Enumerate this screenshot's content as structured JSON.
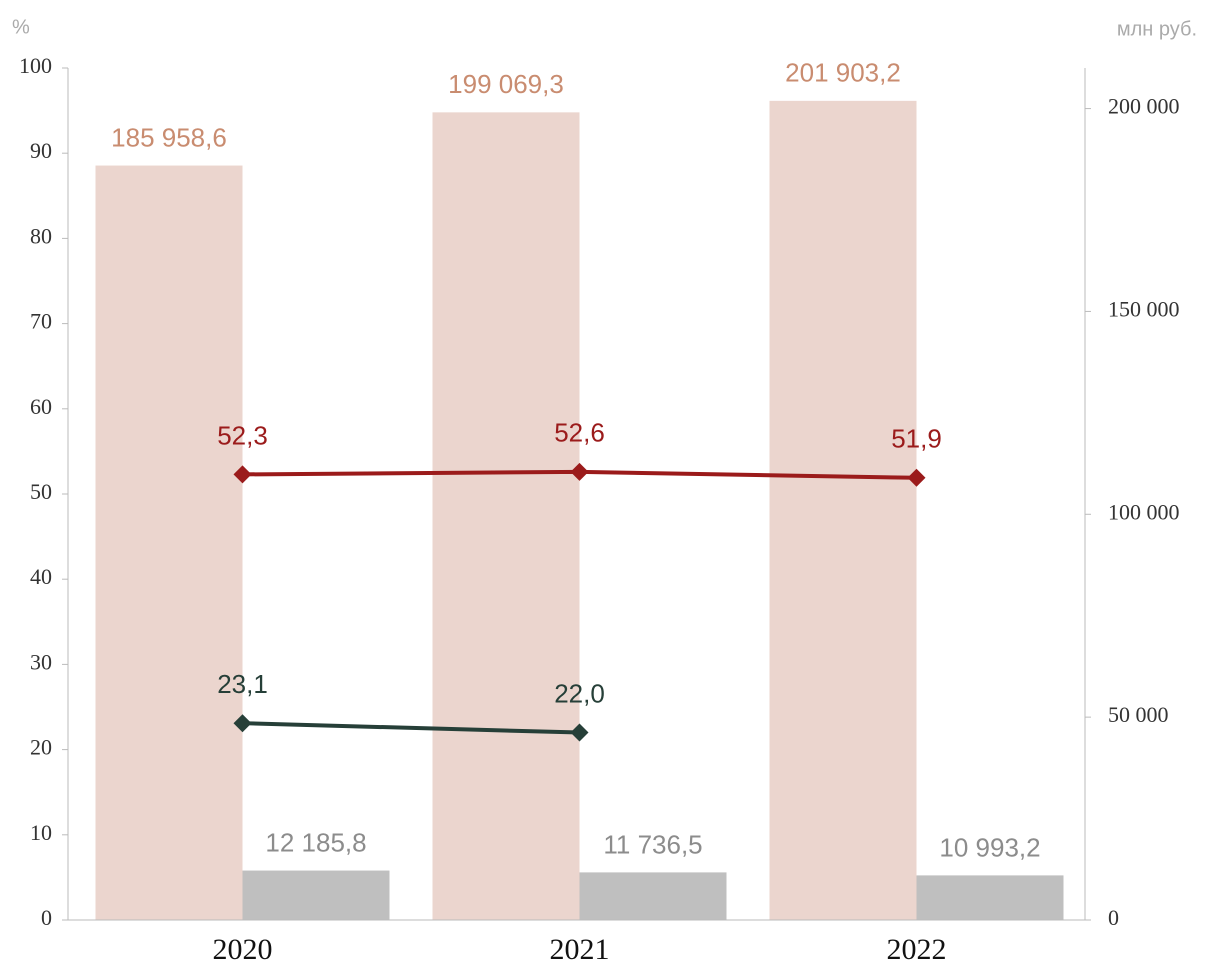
{
  "chart_data": {
    "type": "bar",
    "ylabel": "%",
    "y2label": "млн руб.",
    "categories": [
      "2020",
      "2021",
      "2022"
    ],
    "ylim": [
      0,
      100
    ],
    "yticks": [
      0,
      10,
      20,
      30,
      40,
      50,
      60,
      70,
      80,
      90,
      100
    ],
    "y2lim": [
      0,
      210000
    ],
    "y2ticks": [
      0,
      {
        "value": 50000,
        "label": "50 000"
      },
      {
        "value": 100000,
        "label": "100 000"
      },
      {
        "value": 150000,
        "label": "150 000"
      },
      {
        "value": 200000,
        "label": "200 000"
      }
    ],
    "series": [
      {
        "type": "bar",
        "axis": "y2",
        "color": "#ebd5ce",
        "label_color": "#c98c70",
        "values": [
          185958.6,
          199069.3,
          201903.2
        ],
        "value_labels": [
          "185 958,6",
          "199 069,3",
          "201 903,2"
        ]
      },
      {
        "type": "bar",
        "axis": "y2",
        "color": "#bfbfbf",
        "label_color": "#8c8c8c",
        "values": [
          12185.8,
          11736.5,
          10993.2
        ],
        "value_labels": [
          "12 185,8",
          "11 736,5",
          "10 993,2"
        ]
      },
      {
        "type": "line",
        "color": "#9b1b1b",
        "values": [
          52.3,
          52.6,
          51.9
        ],
        "value_labels": [
          "52,3",
          "52,6",
          "51,9"
        ]
      },
      {
        "type": "line",
        "color": "#263f38",
        "values": [
          23.1,
          22.0,
          null
        ],
        "value_labels": [
          "23,1",
          "22,0",
          null
        ]
      }
    ]
  }
}
